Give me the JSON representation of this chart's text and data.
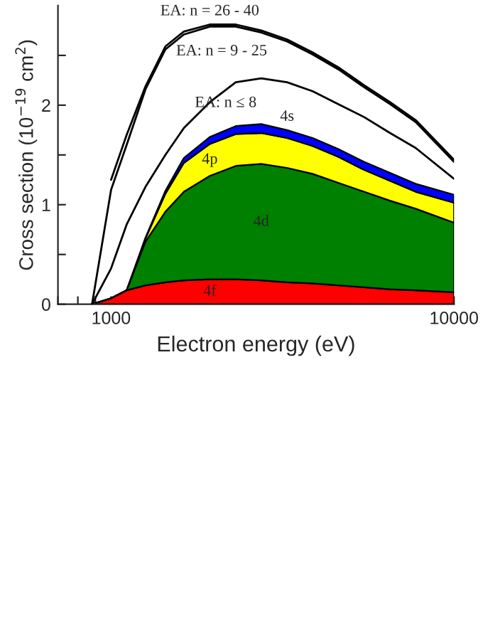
{
  "chart_data": {
    "type": "area",
    "stacked": true,
    "xlabel": "Electron energy (eV)",
    "ylabel": "Cross section (10$^{−19}$ cm$^{2}$)",
    "log": "x",
    "x": [
      880,
      1000,
      1110,
      1260,
      1440,
      1630,
      1940,
      2310,
      2740,
      3260,
      3870,
      4600,
      5470,
      6510,
      7730,
      10000
    ],
    "series": [
      {
        "name": "4f",
        "color": "#ff0000",
        "values": [
          0,
          0.06,
          0.14,
          0.19,
          0.22,
          0.24,
          0.25,
          0.25,
          0.24,
          0.22,
          0.21,
          0.19,
          0.17,
          0.15,
          0.14,
          0.12
        ]
      },
      {
        "name": "4d",
        "color": "#008000",
        "values": [
          0,
          0,
          0,
          0.44,
          0.71,
          0.89,
          1.04,
          1.14,
          1.17,
          1.15,
          1.1,
          1.03,
          0.96,
          0.89,
          0.82,
          0.7
        ]
      },
      {
        "name": "4p",
        "color": "#ffff00",
        "values": [
          0,
          0,
          0,
          0.03,
          0.18,
          0.29,
          0.32,
          0.32,
          0.31,
          0.3,
          0.28,
          0.26,
          0.22,
          0.2,
          0.17,
          0.2
        ]
      },
      {
        "name": "4s",
        "color": "#0000ff",
        "values": [
          0,
          0,
          0,
          0.01,
          0.03,
          0.05,
          0.07,
          0.08,
          0.09,
          0.08,
          0.08,
          0.08,
          0.08,
          0.08,
          0.08,
          0.08
        ]
      },
      {
        "name": "EA: n ≤ 8",
        "type": "line",
        "color": "#000000",
        "values": [
          0,
          0.36,
          0.8,
          1.18,
          1.5,
          1.77,
          2.03,
          2.23,
          2.27,
          2.23,
          2.14,
          2.01,
          1.88,
          1.72,
          1.57,
          1.26
        ]
      },
      {
        "name": "EA: n = 9 - 25",
        "type": "line",
        "color": "#000000",
        "values": [
          0,
          1.15,
          1.6,
          2.16,
          2.56,
          2.71,
          2.79,
          2.79,
          2.73,
          2.64,
          2.51,
          2.36,
          2.18,
          2.01,
          1.83,
          1.43
        ]
      },
      {
        "name": "EA: n = 26 - 40",
        "type": "line",
        "color": "#000000",
        "x": [
          1000,
          1110,
          1260,
          1440,
          1630,
          1940,
          2310,
          2740,
          3260,
          3870,
          4600,
          5470,
          6510,
          7730,
          10000
        ],
        "values": [
          1.25,
          1.7,
          2.19,
          2.59,
          2.74,
          2.81,
          2.81,
          2.75,
          2.66,
          2.53,
          2.38,
          2.2,
          2.03,
          1.85,
          1.45
        ]
      }
    ],
    "xlim": [
      700,
      10000
    ],
    "xticks": [
      {
        "value": 700,
        "label": null
      },
      {
        "value": 800,
        "label": null
      },
      {
        "value": 900,
        "label": null
      },
      1000,
      {
        "value": 2000,
        "label": null
      },
      {
        "value": 3000,
        "label": null
      },
      {
        "value": 4000,
        "label": null
      },
      {
        "value": 5000,
        "label": null
      },
      {
        "value": 6000,
        "label": null
      },
      {
        "value": 7000,
        "label": null
      },
      {
        "value": 8000,
        "label": null
      },
      {
        "value": 9000,
        "label": null
      },
      10000
    ],
    "ylim": [
      0,
      3.0
    ],
    "yticks": [
      0,
      {
        "value": 0.5,
        "label": null
      },
      1,
      {
        "value": 1.5,
        "label": null
      },
      2,
      {
        "value": 2.5,
        "label": null
      }
    ],
    "grid": false,
    "legend": false
  }
}
